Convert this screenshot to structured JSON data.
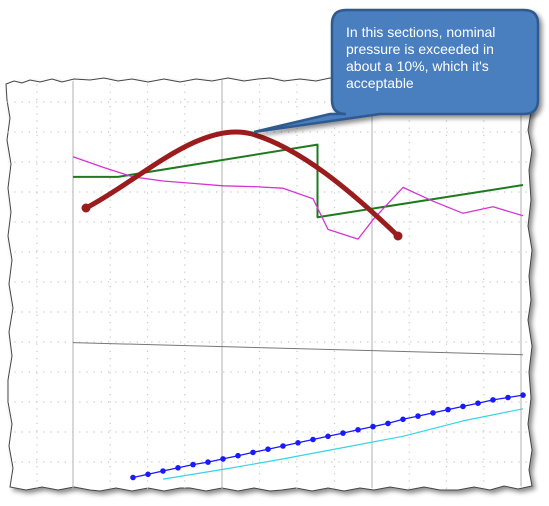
{
  "chart_data": {
    "type": "line",
    "title": "",
    "xlabel": "",
    "ylabel": "",
    "grid": true,
    "legend": "none",
    "x_index": [
      0,
      1,
      2,
      3,
      4,
      5,
      6,
      7,
      8,
      9,
      10,
      11,
      12,
      13,
      14,
      15,
      16,
      17,
      18,
      19,
      20,
      21,
      22,
      23,
      24,
      25,
      26,
      27,
      28,
      29,
      30
    ],
    "series": [
      {
        "color": "#1f7a1f",
        "style": "solid",
        "values": [
          [
            0,
            0.505
          ],
          [
            3,
            0.505
          ],
          [
            16.3,
            0.545
          ],
          [
            16.3,
            0.455
          ],
          [
            30,
            0.495
          ]
        ]
      },
      {
        "color": "#d633d6",
        "style": "solid",
        "values": [
          [
            0,
            0.53
          ],
          [
            2,
            0.517
          ],
          [
            4,
            0.505
          ],
          [
            6,
            0.5
          ],
          [
            8,
            0.497
          ],
          [
            10,
            0.494
          ],
          [
            12,
            0.493
          ],
          [
            14,
            0.491
          ],
          [
            16,
            0.478
          ],
          [
            17,
            0.44
          ],
          [
            19,
            0.428
          ],
          [
            20,
            0.452
          ],
          [
            22,
            0.492
          ],
          [
            24,
            0.475
          ],
          [
            26,
            0.46
          ],
          [
            28,
            0.468
          ],
          [
            30,
            0.457
          ]
        ]
      },
      {
        "color": "#777777",
        "style": "solid",
        "values": [
          [
            0,
            0.3
          ],
          [
            30,
            0.285
          ]
        ]
      },
      {
        "color": "#1a1aff",
        "style": "solid-markers",
        "values": [
          [
            4,
            0.133
          ],
          [
            5,
            0.137
          ],
          [
            6,
            0.141
          ],
          [
            7,
            0.145
          ],
          [
            8,
            0.149
          ],
          [
            9,
            0.152
          ],
          [
            10,
            0.156
          ],
          [
            11,
            0.16
          ],
          [
            12,
            0.164
          ],
          [
            13,
            0.168
          ],
          [
            14,
            0.172
          ],
          [
            15,
            0.176
          ],
          [
            16,
            0.18
          ],
          [
            17,
            0.184
          ],
          [
            18,
            0.188
          ],
          [
            19,
            0.192
          ],
          [
            20,
            0.196
          ],
          [
            21,
            0.2
          ],
          [
            22,
            0.205
          ],
          [
            23,
            0.209
          ],
          [
            24,
            0.213
          ],
          [
            25,
            0.217
          ],
          [
            26,
            0.221
          ],
          [
            27,
            0.225
          ],
          [
            28,
            0.229
          ],
          [
            29,
            0.232
          ],
          [
            30,
            0.235
          ]
        ]
      },
      {
        "color": "#33d6e6",
        "style": "solid",
        "values": [
          [
            6,
            0.131
          ],
          [
            10,
            0.143
          ],
          [
            14,
            0.156
          ],
          [
            18,
            0.17
          ],
          [
            22,
            0.184
          ],
          [
            26,
            0.203
          ],
          [
            30,
            0.218
          ]
        ]
      }
    ],
    "ylim": [
      0.12,
      0.62
    ],
    "xlim": [
      0,
      30
    ],
    "annotations": [
      {
        "text": "In this sections, nominal pressure is exceeded in about a 10%, which it's acceptable",
        "style": "callout"
      }
    ]
  },
  "colors": {
    "callout_fill": "#4a7ebf",
    "callout_border": "#2e5a8f",
    "arrow": "#9b1c1c",
    "grid_major": "#b0b0b0",
    "grid_minor": "#c8c8c8"
  }
}
